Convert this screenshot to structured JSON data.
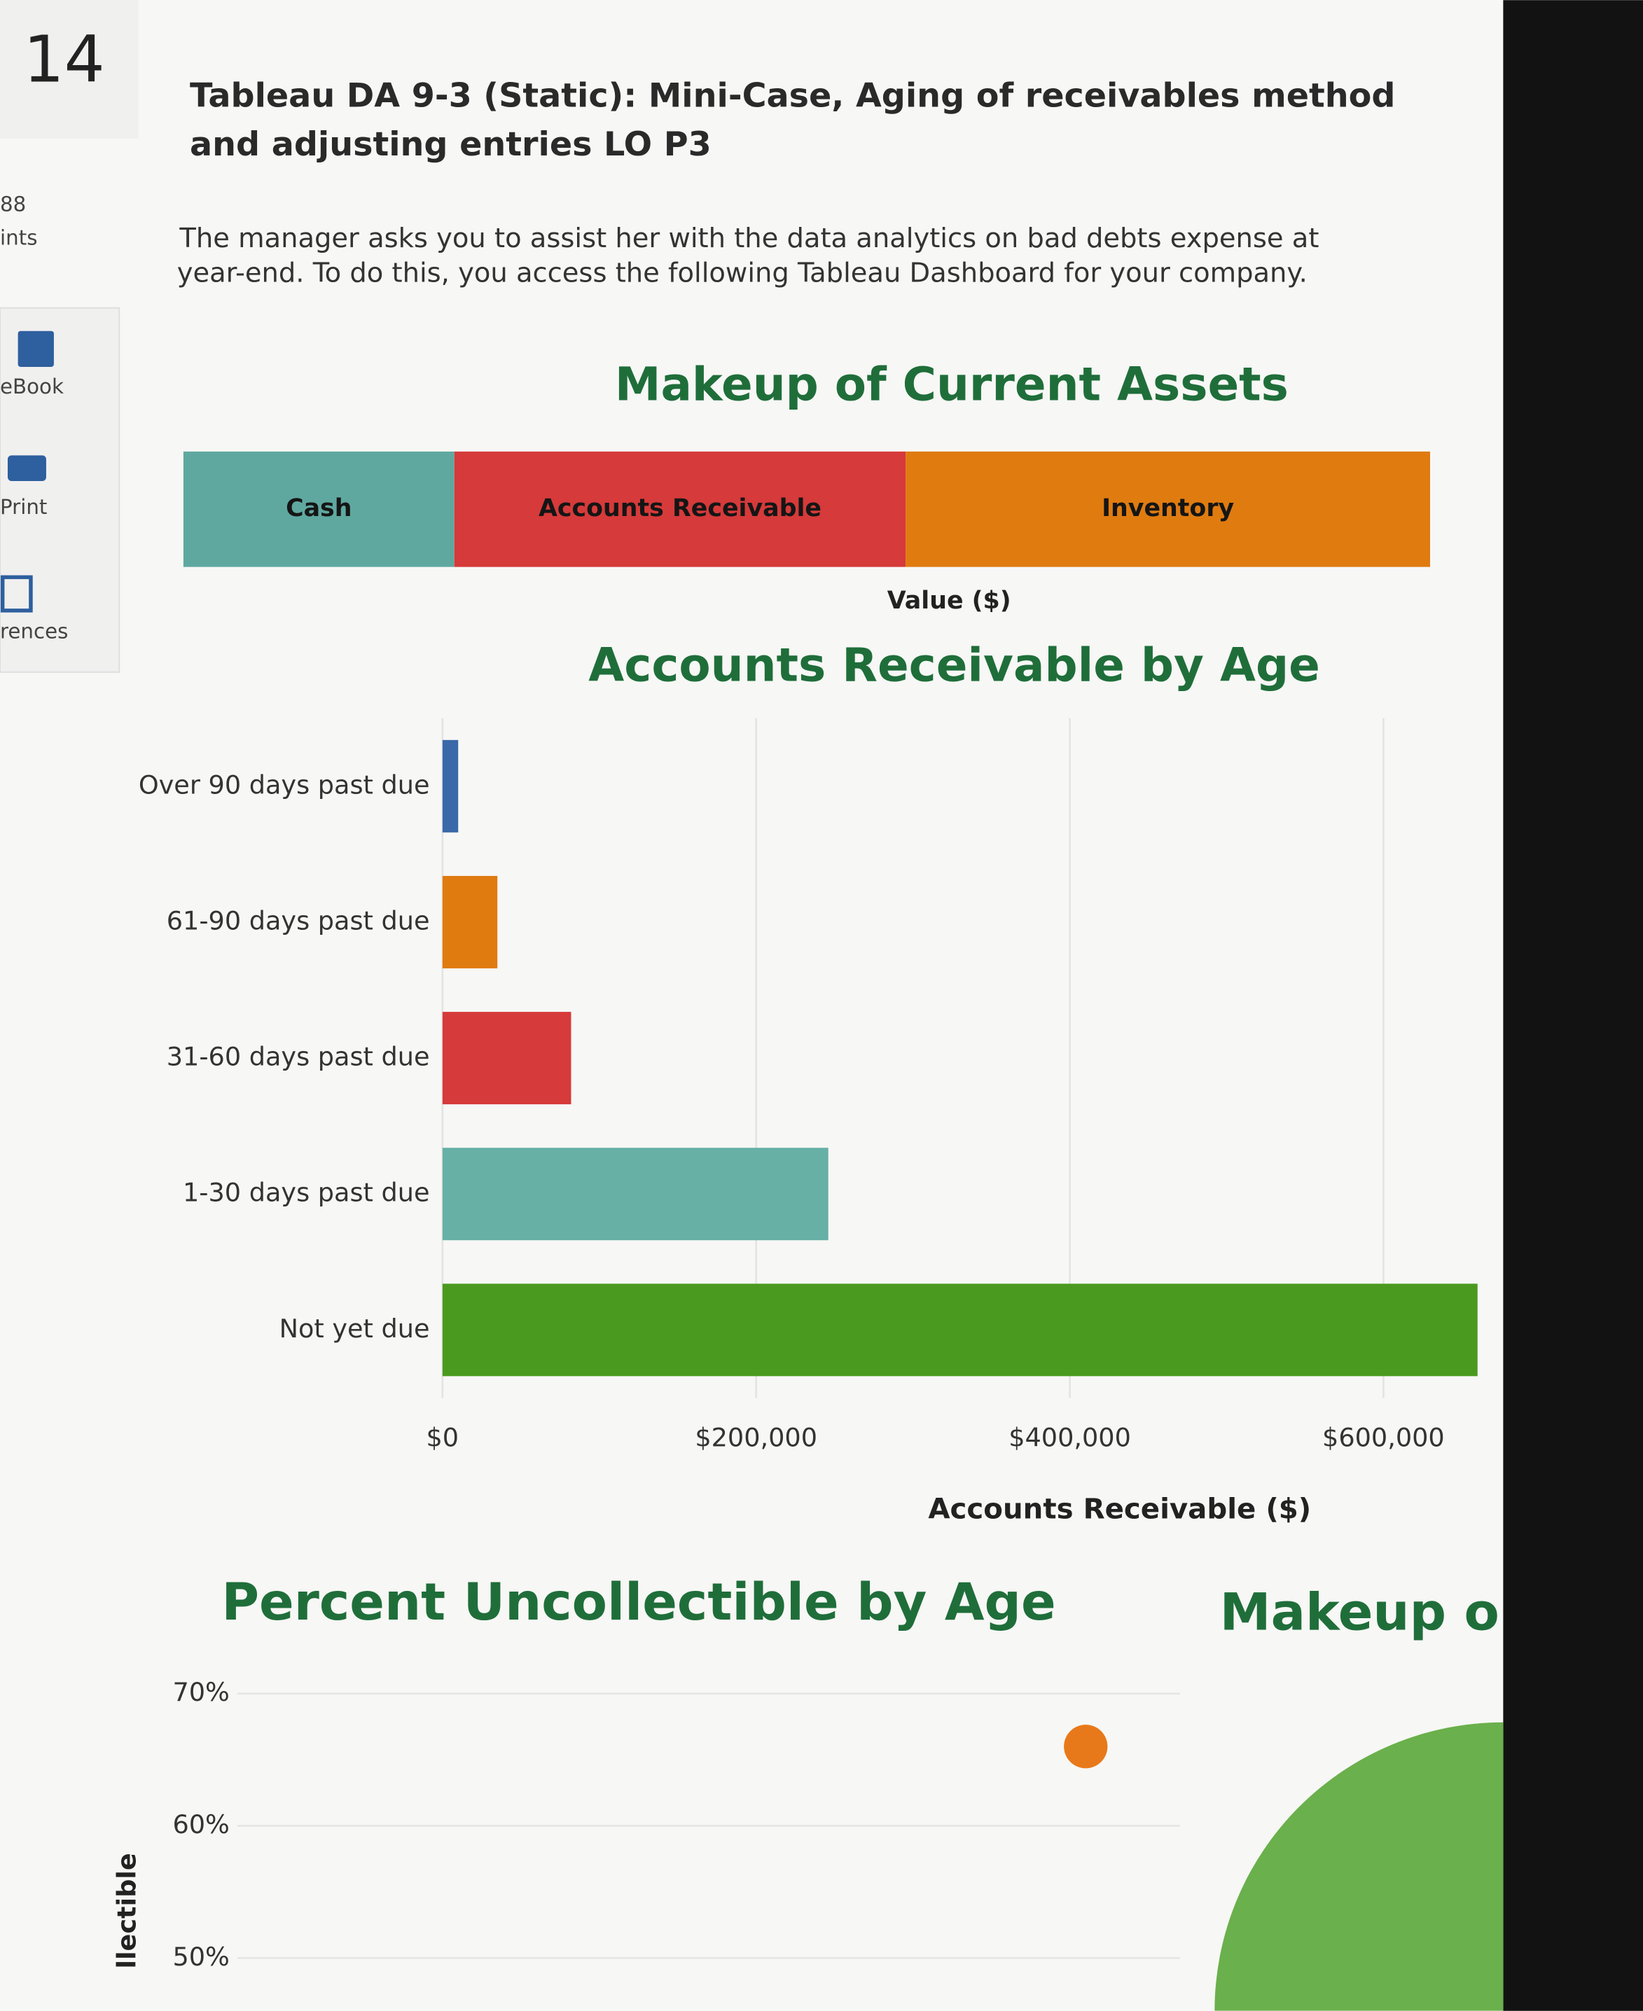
{
  "sidebar": {
    "question_number": "14",
    "points_value": "88",
    "points_label": "ints",
    "tools": [
      "eBook",
      "Print",
      "rences"
    ]
  },
  "question": {
    "title_lines": [
      "Tableau DA 9-3 (Static): Mini-Case, Aging of receivables method",
      "and adjusting entries LO P3"
    ],
    "text_lines": [
      "The manager asks you to assist her with the data analytics on bad debts expense at",
      "year-end. To do this, you access the following Tableau Dashboard for your company."
    ]
  },
  "chart_data": [
    {
      "type": "stacked_bar",
      "title": "Makeup of Current Assets",
      "xlabel": "Value ($)",
      "xlim": [
        0,
        2853000
      ],
      "series": [
        {
          "name": "Cash",
          "color": "#5fa8a0",
          "values": [
            620000
          ]
        },
        {
          "name": "Accounts Receivable",
          "color": "#d63a3a",
          "values": [
            1033000
          ]
        },
        {
          "name": "Inventory",
          "color": "#e07b10",
          "values": [
            1200000
          ]
        }
      ]
    },
    {
      "type": "bar",
      "title": "Accounts Receivable by Age",
      "xlabel": "Accounts Receivable ($)",
      "categories": [
        "Over 90 days past due",
        "61-90 days past due",
        "31-60 days past due",
        "1-30 days past due",
        "Not yet due"
      ],
      "values": [
        10000,
        35000,
        82000,
        246000,
        660000
      ],
      "colors": [
        "#3a68a8",
        "#e07b10",
        "#d63a3a",
        "#66b0a6",
        "#4a9a1f"
      ],
      "xlim": [
        0,
        660000
      ],
      "xticks": [
        {
          "value": 0,
          "label": "$0"
        },
        {
          "value": 200000,
          "label": "$200,000"
        },
        {
          "value": 400000,
          "label": "$400,000"
        },
        {
          "value": 600000,
          "label": "$600,000"
        }
      ],
      "grid": true
    },
    {
      "type": "dot",
      "title": "Percent Uncollectible by Age",
      "ylabel": "llectible",
      "categories": [
        null,
        null,
        null,
        null,
        null
      ],
      "values": [
        null,
        null,
        null,
        null,
        66
      ],
      "color": "#e8791a",
      "ylim": [
        46,
        72
      ],
      "yticks": [
        {
          "value": 50,
          "label": "50%"
        },
        {
          "value": 60,
          "label": "60%"
        },
        {
          "value": 70,
          "label": "70%"
        }
      ],
      "grid": true
    },
    {
      "type": "pie",
      "title": "Makeup o",
      "color": "#6ab04c"
    }
  ]
}
